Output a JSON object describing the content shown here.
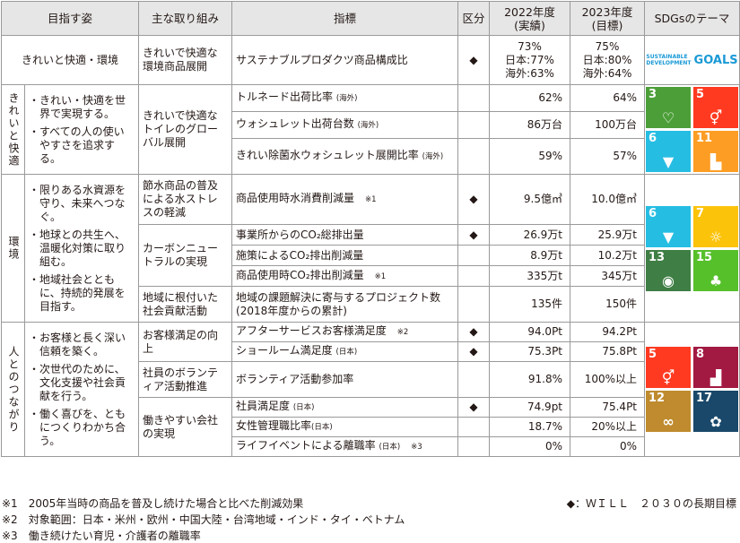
{
  "headers": {
    "goal": "目指す姿",
    "initiative": "主な取り組み",
    "indicator": "指標",
    "category": "区分",
    "fy2022": "2022年度\n(実績)",
    "fy2023": "2023年度\n(目標)",
    "sdgs": "SDGsのテーマ"
  },
  "mark": "◆",
  "row_top": {
    "goal": "きれいと快適・環境",
    "initiative": "きれいで快適な環境商品展開",
    "indicator": "サステナブルプロダクツ商品構成比",
    "fy2022": "73%\n日本:77%\n海外:63%",
    "fy2023": "75%\n日本:80%\n海外:64%",
    "sdg_logo_line1": "SUSTAINABLE",
    "sdg_logo_line2": "DEVELOPMENT",
    "sdg_logo_goals": "GOALS"
  },
  "sections": {
    "kirei": {
      "label": "きれいと快適",
      "bullets": [
        "きれい・快適を世界で実現する。",
        "すべての人の使いやすさを追求する。"
      ],
      "initiative": "きれいで快適なトイレのグローバル展開",
      "rows": [
        {
          "indicator": "トルネード出荷比率",
          "note": "(海外)",
          "v22": "62%",
          "v23": "64%"
        },
        {
          "indicator": "ウォシュレット出荷台数",
          "note": "(海外)",
          "v22": "86万台",
          "v23": "100万台"
        },
        {
          "indicator": "きれい除菌水ウォシュレット展開比率",
          "note": "(海外)",
          "v22": "59%",
          "v23": "57%"
        }
      ]
    },
    "env": {
      "label": "環境",
      "bullets": [
        "限りある水資源を守り、未来へつなぐ。",
        "地球との共生へ、温暖化対策に取り組む。",
        "地域社会とともに、持続的発展を目指す。"
      ],
      "initiatives": [
        "節水商品の普及による水ストレスの軽減",
        "カーボンニュートラルの実現",
        "地域に根付いた社会貢献活動"
      ],
      "rows": [
        {
          "indicator": "商品使用時水消費削減量",
          "note": "※1",
          "v22": "9.5億㎥",
          "v23": "10.0億㎥"
        },
        {
          "indicator": "事業所からのCO₂総排出量",
          "note": "",
          "v22": "26.9万t",
          "v23": "25.9万t"
        },
        {
          "indicator": "施策によるCO₂排出削減量",
          "note": "",
          "v22": "8.9万t",
          "v23": "10.2万t"
        },
        {
          "indicator": "商品使用時CO₂排出削減量",
          "note": "※1",
          "v22": "335万t",
          "v23": "345万t"
        },
        {
          "indicator": "地域の課題解決に寄与するプロジェクト数(2018年度からの累計)",
          "note": "",
          "v22": "135件",
          "v23": "150件"
        }
      ]
    },
    "people": {
      "label": "人とのつながり",
      "bullets": [
        "お客様と長く深い信頼を築く。",
        "次世代のために、文化支援や社会貢献を行う。",
        "働く喜びを、ともにつくりわかち合う。"
      ],
      "initiatives": [
        "お客様満足の向上",
        "社員のボランティア活動推進",
        "働きやすい会社の実現"
      ],
      "rows": [
        {
          "indicator": "アフターサービスお客様満足度",
          "note": "※2",
          "v22": "94.0Pt",
          "v23": "94.2Pt"
        },
        {
          "indicator": "ショールーム満足度",
          "note": "(日本)",
          "v22": "75.3Pt",
          "v23": "75.8Pt"
        },
        {
          "indicator": "ボランティア活動参加率",
          "note": "",
          "v22": "91.8%",
          "v23": "100%以上"
        },
        {
          "indicator": "社員満足度",
          "note": "(日本)",
          "v22": "74.9pt",
          "v23": "75.4Pt"
        },
        {
          "indicator": "女性管理職比率",
          "note": "(日本)",
          "v22": "18.7%",
          "v23": "20%以上"
        },
        {
          "indicator": "ライフイベントによる離職率",
          "note": "(日本)",
          "note2": "※3",
          "v22": "0%",
          "v23": "0%"
        }
      ]
    }
  },
  "sdg_tiles": {
    "group1": [
      {
        "num": "3",
        "color": "#4c9f38",
        "icon": "heartbeat-icon",
        "glyph": "♡"
      },
      {
        "num": "5",
        "color": "#ff3a21",
        "icon": "gender-icon",
        "glyph": "⚥"
      },
      {
        "num": "6",
        "color": "#26bde2",
        "icon": "water-drop-icon",
        "glyph": "▼"
      },
      {
        "num": "11",
        "color": "#fd9d24",
        "icon": "city-icon",
        "glyph": "▙"
      }
    ],
    "group2": [
      {
        "num": "6",
        "color": "#26bde2",
        "icon": "water-drop-icon",
        "glyph": "▼"
      },
      {
        "num": "7",
        "color": "#fcc30b",
        "icon": "sun-icon",
        "glyph": "☼"
      },
      {
        "num": "13",
        "color": "#3f7e44",
        "icon": "eye-earth-icon",
        "glyph": "◉"
      },
      {
        "num": "15",
        "color": "#56c02b",
        "icon": "tree-icon",
        "glyph": "♣"
      }
    ],
    "group3": [
      {
        "num": "5",
        "color": "#ff3a21",
        "icon": "gender-icon",
        "glyph": "⚥"
      },
      {
        "num": "8",
        "color": "#a21942",
        "icon": "growth-chart-icon",
        "glyph": "▟"
      },
      {
        "num": "12",
        "color": "#bf8b2e",
        "icon": "infinity-icon",
        "glyph": "∞"
      },
      {
        "num": "17",
        "color": "#19486a",
        "icon": "flower-icon",
        "glyph": "✿"
      }
    ]
  },
  "footnotes": [
    "※1　2005年当時の商品を普及し続けた場合と比べた削減効果",
    "※2　対象範囲：日本・米州・欧州・中国大陸・台湾地域・インド・タイ・ベトナム",
    "※3　働き続けたい育児・介護者の離職率"
  ],
  "legend": "◆：ＷＩＬＬ　２０３０の長期目標"
}
